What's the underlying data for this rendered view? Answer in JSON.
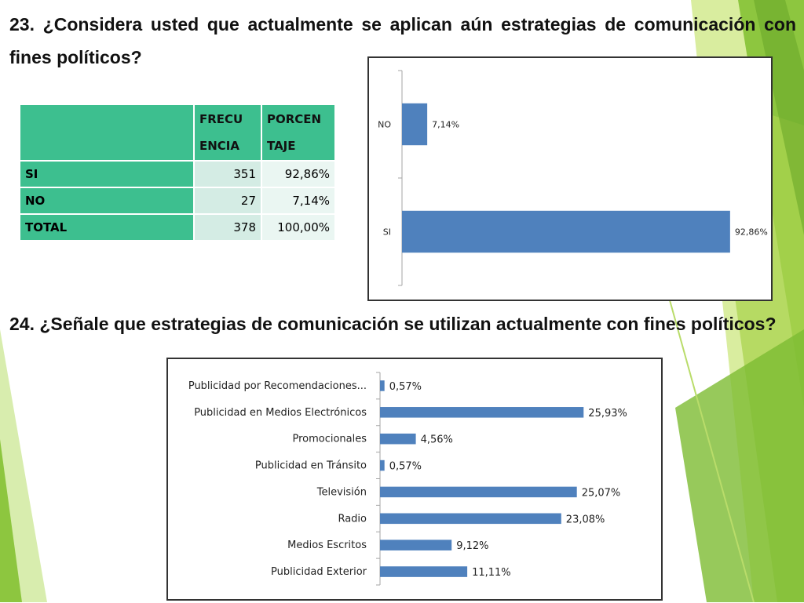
{
  "q23": "23. ¿Considera usted que actualmente se aplican aún estrategias de comunicación con fines políticos?",
  "q24": "24. ¿Señale que estrategias de comunicación se utilizan actualmente con fines políticos?",
  "table": {
    "headers": [
      "",
      "FRECU ENCIA",
      "PORCEN TAJE"
    ],
    "header_lines": {
      "freq": [
        "FRECU",
        "ENCIA"
      ],
      "pct": [
        "PORCEN",
        "TAJE"
      ]
    },
    "rows": [
      {
        "label": "SI",
        "freq": "351",
        "pct": "92,86%"
      },
      {
        "label": "NO",
        "freq": "27",
        "pct": "7,14%"
      },
      {
        "label": "TOTAL",
        "freq": "378",
        "pct": "100,00%"
      }
    ]
  },
  "colors": {
    "bar": "#4f81bd",
    "table_header": "#3dbf8f",
    "bg_green": "#8dc63f"
  },
  "chart_data": [
    {
      "type": "bar",
      "orientation": "horizontal",
      "categories": [
        "NO",
        "SI"
      ],
      "values": [
        7.14,
        92.86
      ],
      "labels": [
        "7,14%",
        "92,86%"
      ],
      "xlim": [
        0,
        100
      ]
    },
    {
      "type": "bar",
      "orientation": "horizontal",
      "categories": [
        "Publicidad por Recomendaciones...",
        "Publicidad en Medios Electrónicos",
        "Promocionales",
        "Publicidad en Tránsito",
        "Televisión",
        "Radio",
        "Medios Escritos",
        "Publicidad Exterior"
      ],
      "values": [
        0.57,
        25.93,
        4.56,
        0.57,
        25.07,
        23.08,
        9.12,
        11.11
      ],
      "labels": [
        "0,57%",
        "25,93%",
        "4,56%",
        "0,57%",
        "25,07%",
        "23,08%",
        "9,12%",
        "11,11%"
      ],
      "xlim": [
        0,
        30
      ]
    }
  ]
}
